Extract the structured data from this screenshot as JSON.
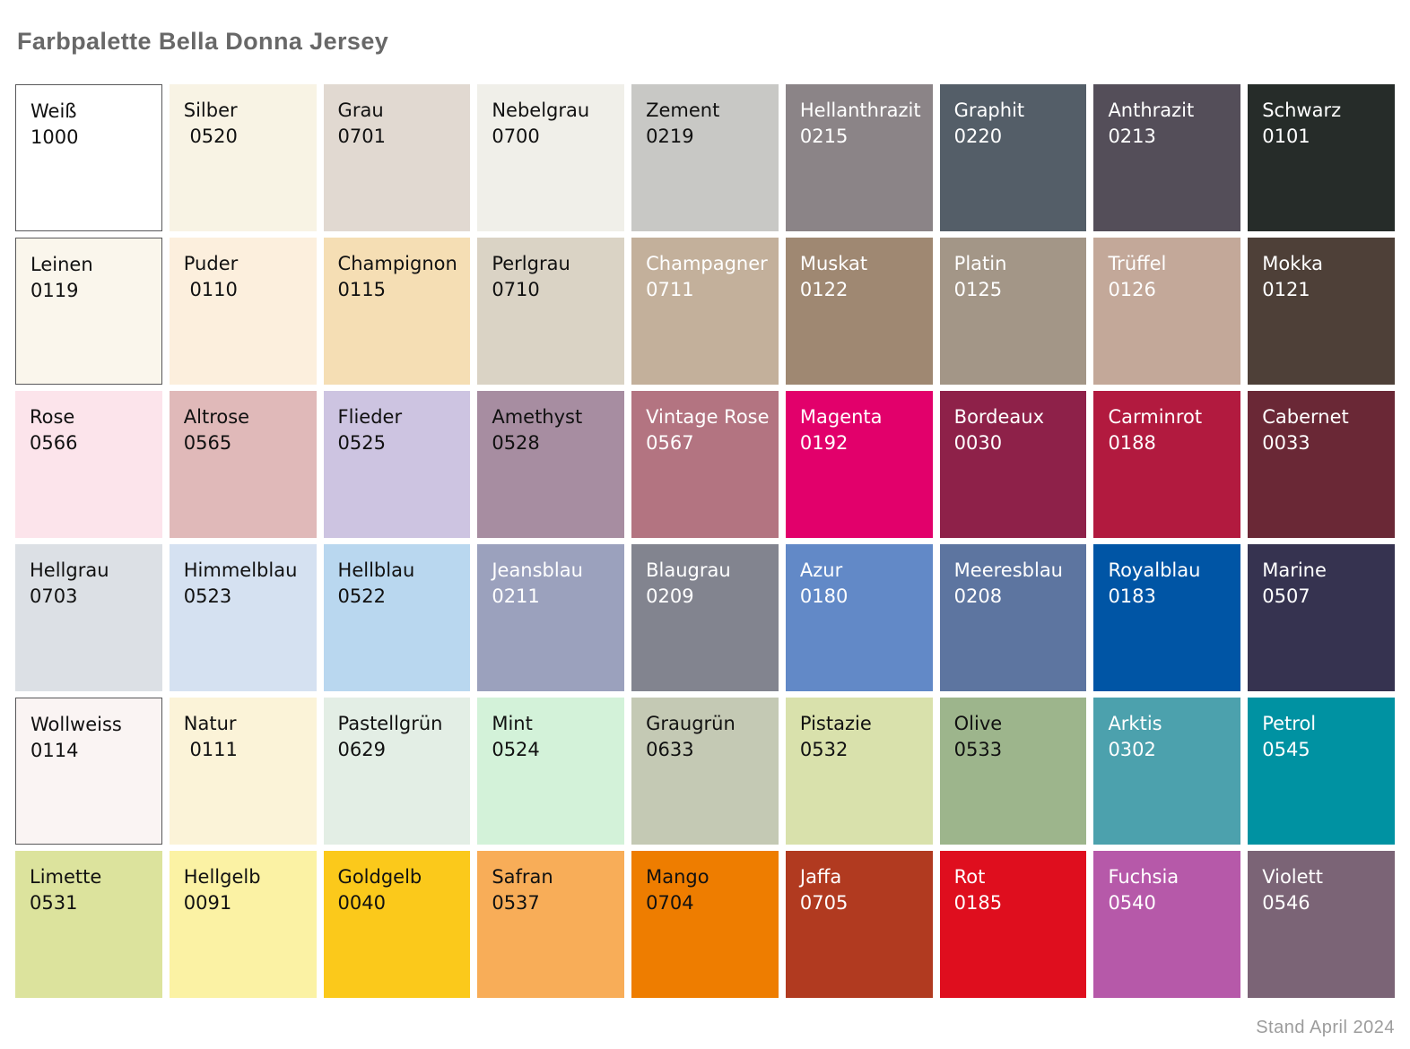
{
  "title": "Farbpalette Bella Donna Jersey",
  "footer": "Stand April 2024",
  "theme": {
    "page_background": "#FFFFFF",
    "title_text": "#686868",
    "footer_text": "#9C9C9C",
    "dark_label": "#111111",
    "light_label": "#FFFFFF",
    "white_swatch_border": "#58585A"
  },
  "swatches": [
    {
      "name": "Weiß",
      "code": "1000",
      "bg": "#FFFFFF",
      "label": "dark",
      "bordered": true
    },
    {
      "name": "Silber",
      "code": " 0520",
      "bg": "#F8F3E4",
      "label": "dark",
      "bordered": false
    },
    {
      "name": "Grau",
      "code": "0701",
      "bg": "#E1D9D1",
      "label": "dark",
      "bordered": false
    },
    {
      "name": "Nebelgrau",
      "code": "0700",
      "bg": "#F0EFE9",
      "label": "dark",
      "bordered": false
    },
    {
      "name": "Zement",
      "code": "0219",
      "bg": "#C8C8C5",
      "label": "dark",
      "bordered": false
    },
    {
      "name": "Hellanthrazit",
      "code": "0215",
      "bg": "#8B8487",
      "label": "light",
      "bordered": false
    },
    {
      "name": "Graphit",
      "code": "0220",
      "bg": "#545E68",
      "label": "light",
      "bordered": false
    },
    {
      "name": "Anthrazit",
      "code": "0213",
      "bg": "#544E59",
      "label": "light",
      "bordered": false
    },
    {
      "name": "Schwarz",
      "code": "0101",
      "bg": "#262C29",
      "label": "light",
      "bordered": false
    },
    {
      "name": "Leinen",
      "code": "0119",
      "bg": "#FAF6EC",
      "label": "dark",
      "bordered": true
    },
    {
      "name": "Puder",
      "code": " 0110",
      "bg": "#FCEFDD",
      "label": "dark",
      "bordered": false
    },
    {
      "name": "Champignon",
      "code": "0115",
      "bg": "#F5DEB4",
      "label": "dark",
      "bordered": false
    },
    {
      "name": "Perlgrau",
      "code": "0710",
      "bg": "#DAD3C5",
      "label": "dark",
      "bordered": false
    },
    {
      "name": "Champagner",
      "code": "0711",
      "bg": "#C3B09B",
      "label": "light",
      "bordered": false
    },
    {
      "name": "Muskat",
      "code": "0122",
      "bg": "#9F8872",
      "label": "light",
      "bordered": false
    },
    {
      "name": "Platin",
      "code": "0125",
      "bg": "#A39687",
      "label": "light",
      "bordered": false
    },
    {
      "name": "Trüffel",
      "code": "0126",
      "bg": "#C3A899",
      "label": "light",
      "bordered": false
    },
    {
      "name": "Mokka",
      "code": "0121",
      "bg": "#4E4038",
      "label": "light",
      "bordered": false
    },
    {
      "name": "Rose",
      "code": "0566",
      "bg": "#FCE4EB",
      "label": "dark",
      "bordered": false
    },
    {
      "name": "Altrose",
      "code": "0565",
      "bg": "#E0B9B9",
      "label": "dark",
      "bordered": false
    },
    {
      "name": "Flieder",
      "code": "0525",
      "bg": "#CDC4E1",
      "label": "dark",
      "bordered": false
    },
    {
      "name": "Amethyst",
      "code": "0528",
      "bg": "#A78DA1",
      "label": "dark",
      "bordered": false
    },
    {
      "name": "Vintage Rose",
      "code": "0567",
      "bg": "#B37481",
      "label": "light",
      "bordered": false
    },
    {
      "name": "Magenta",
      "code": "0192",
      "bg": "#E2006B",
      "label": "light",
      "bordered": false
    },
    {
      "name": "Bordeaux",
      "code": "0030",
      "bg": "#8E2149",
      "label": "light",
      "bordered": false
    },
    {
      "name": "Carminrot",
      "code": "0188",
      "bg": "#B21A3F",
      "label": "light",
      "bordered": false
    },
    {
      "name": "Cabernet",
      "code": "0033",
      "bg": "#6A2836",
      "label": "light",
      "bordered": false
    },
    {
      "name": "Hellgrau",
      "code": "0703",
      "bg": "#DCE0E5",
      "label": "dark",
      "bordered": false
    },
    {
      "name": "Himmelblau",
      "code": "0523",
      "bg": "#D5E1F1",
      "label": "dark",
      "bordered": false
    },
    {
      "name": "Hellblau",
      "code": "0522",
      "bg": "#B9D7EF",
      "label": "dark",
      "bordered": false
    },
    {
      "name": "Jeansblau",
      "code": "0211",
      "bg": "#9BA1BD",
      "label": "light",
      "bordered": false
    },
    {
      "name": "Blaugrau",
      "code": "0209",
      "bg": "#82848F",
      "label": "light",
      "bordered": false
    },
    {
      "name": "Azur",
      "code": "0180",
      "bg": "#6289C7",
      "label": "light",
      "bordered": false
    },
    {
      "name": "Meeresblau",
      "code": "0208",
      "bg": "#5D75A0",
      "label": "light",
      "bordered": false
    },
    {
      "name": "Royalblau",
      "code": "0183",
      "bg": "#0055A5",
      "label": "light",
      "bordered": false
    },
    {
      "name": "Marine",
      "code": "0507",
      "bg": "#363350",
      "label": "light",
      "bordered": false
    },
    {
      "name": "Wollweiss",
      "code": "0114",
      "bg": "#FAF4F3",
      "label": "dark",
      "bordered": true
    },
    {
      "name": "Natur",
      "code": " 0111",
      "bg": "#FBF3D8",
      "label": "dark",
      "bordered": false
    },
    {
      "name": "Pastellgrün",
      "code": "0629",
      "bg": "#E3EEE5",
      "label": "dark",
      "bordered": false
    },
    {
      "name": "Mint",
      "code": "0524",
      "bg": "#D3F2D9",
      "label": "dark",
      "bordered": false
    },
    {
      "name": "Graugrün",
      "code": "0633",
      "bg": "#C4C9B4",
      "label": "dark",
      "bordered": false
    },
    {
      "name": "Pistazie",
      "code": "0532",
      "bg": "#D9E1AC",
      "label": "dark",
      "bordered": false
    },
    {
      "name": "Olive",
      "code": "0533",
      "bg": "#9DB58C",
      "label": "dark",
      "bordered": false
    },
    {
      "name": "Arktis",
      "code": "0302",
      "bg": "#4CA1AD",
      "label": "light",
      "bordered": false
    },
    {
      "name": "Petrol",
      "code": "0545",
      "bg": "#0092A2",
      "label": "light",
      "bordered": false
    },
    {
      "name": "Limette",
      "code": "0531",
      "bg": "#DCE39D",
      "label": "dark",
      "bordered": false
    },
    {
      "name": "Hellgelb",
      "code": "0091",
      "bg": "#FBF2A4",
      "label": "dark",
      "bordered": false
    },
    {
      "name": "Goldgelb",
      "code": "0040",
      "bg": "#FBC91B",
      "label": "dark",
      "bordered": false
    },
    {
      "name": "Safran",
      "code": "0537",
      "bg": "#F8AD58",
      "label": "dark",
      "bordered": false
    },
    {
      "name": "Mango",
      "code": "0704",
      "bg": "#EE7D00",
      "label": "dark",
      "bordered": false
    },
    {
      "name": "Jaffa",
      "code": "0705",
      "bg": "#B13A20",
      "label": "light",
      "bordered": false
    },
    {
      "name": "Rot",
      "code": "0185",
      "bg": "#DF0E1E",
      "label": "light",
      "bordered": false
    },
    {
      "name": "Fuchsia",
      "code": "0540",
      "bg": "#B659A9",
      "label": "light",
      "bordered": false
    },
    {
      "name": "Violett",
      "code": "0546",
      "bg": "#7B6476",
      "label": "light",
      "bordered": false
    }
  ]
}
